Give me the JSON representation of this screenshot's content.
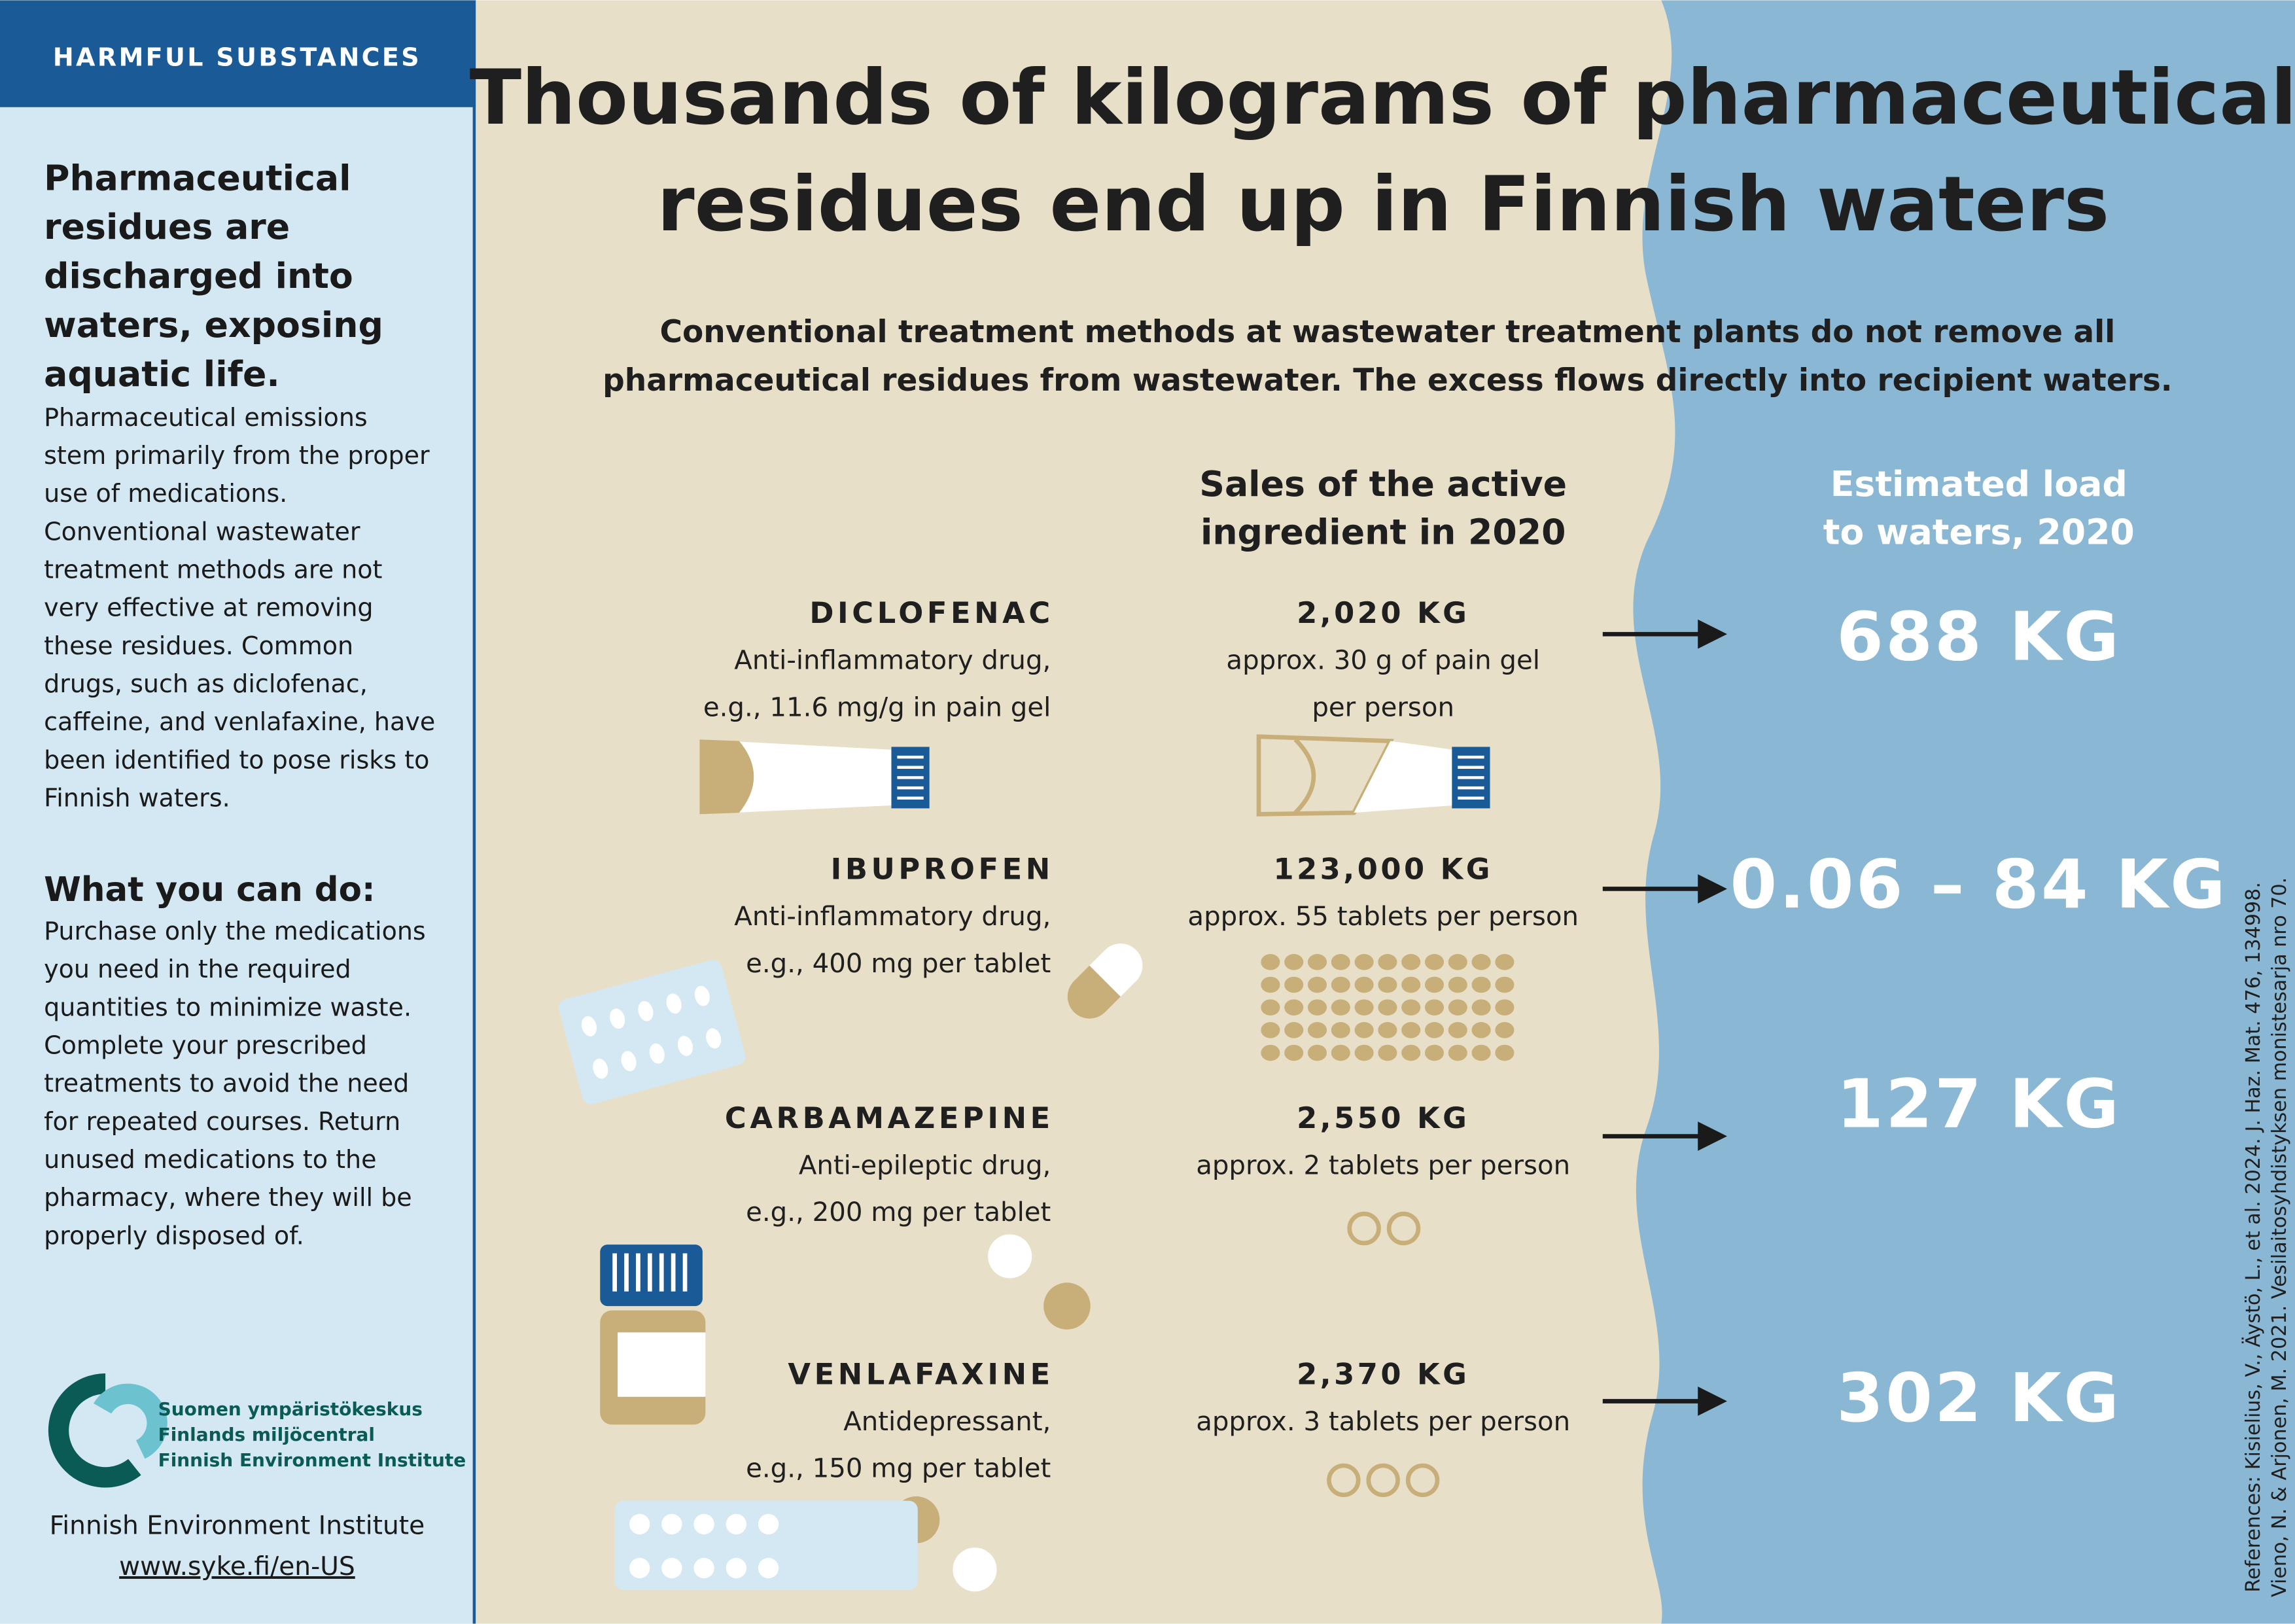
{
  "sidebar": {
    "tag": "HARMFUL SUBSTANCES",
    "heading": [
      "Pharmaceutical",
      "residues are",
      "discharged into",
      "waters, exposing",
      "aquatic life."
    ],
    "body": [
      "Pharmaceutical emissions",
      "stem primarily from the proper",
      "use of medications.",
      "Conventional wastewater",
      "treatment methods are not",
      "very effective at removing",
      "these residues. Common",
      "drugs, such as diclofenac,",
      "caffeine, and venlafaxine, have",
      "been identified to pose risks to",
      "Finnish waters."
    ],
    "action_heading": "What you can do:",
    "action_body": [
      "Purchase only the medications",
      "you need in the required",
      "quantities to minimize waste.",
      "Complete your prescribed",
      "treatments to avoid the need",
      "for repeated courses. Return",
      "unused medications to the",
      "pharmacy, where they will be",
      "properly disposed of."
    ],
    "logo_lines": [
      "Suomen ympäristökeskus",
      "Finlands miljöcentral",
      "Finnish Environment Institute"
    ],
    "institute": "Finnish Environment Institute",
    "url": "www.syke.fi/en-US"
  },
  "title": [
    "Thousands of kilograms of pharmaceutical",
    "residues end up in Finnish waters"
  ],
  "subtitle": [
    "Conventional treatment methods at wastewater treatment plants do not remove all",
    "pharmaceutical residues from wastewater. The excess flows directly into recipient waters."
  ],
  "column_headers": {
    "sales": [
      "Sales of the active",
      "ingredient in 2020"
    ],
    "load": [
      "Estimated load",
      "to waters, 2020"
    ]
  },
  "drugs": [
    {
      "name": "DICLOFENAC",
      "description": [
        "Anti-inflammatory drug,",
        "e.g., 11.6 mg/g in pain gel"
      ],
      "sales": "2,020 KG",
      "sales_note": [
        "approx. 30 g of pain gel",
        "per person"
      ],
      "load": "688 KG"
    },
    {
      "name": "IBUPROFEN",
      "description": [
        "Anti-inflammatory drug,",
        "e.g., 400 mg per tablet"
      ],
      "sales": "123,000 KG",
      "sales_note": [
        "approx. 55 tablets per person"
      ],
      "load": "0.06 – 84 KG"
    },
    {
      "name": "CARBAMAZEPINE",
      "description": [
        "Anti-epileptic drug,",
        "e.g., 200 mg per tablet"
      ],
      "sales": "2,550 KG",
      "sales_note": [
        "approx. 2 tablets per person"
      ],
      "load": "127 KG"
    },
    {
      "name": "VENLAFAXINE",
      "description": [
        "Antidepressant,",
        "e.g., 150 mg per tablet"
      ],
      "sales": "2,370 KG",
      "sales_note": [
        "approx. 3 tablets per person"
      ],
      "load": "302 KG"
    }
  ],
  "references": [
    "References: Kisielius, V., Äystö, L., et al. 2024. J. Haz. Mat. 476, 134998.",
    "Vieno, N. & Arjonen, M. 2021. Vesilaitosyhdistyksen monistesarja nro 70."
  ]
}
